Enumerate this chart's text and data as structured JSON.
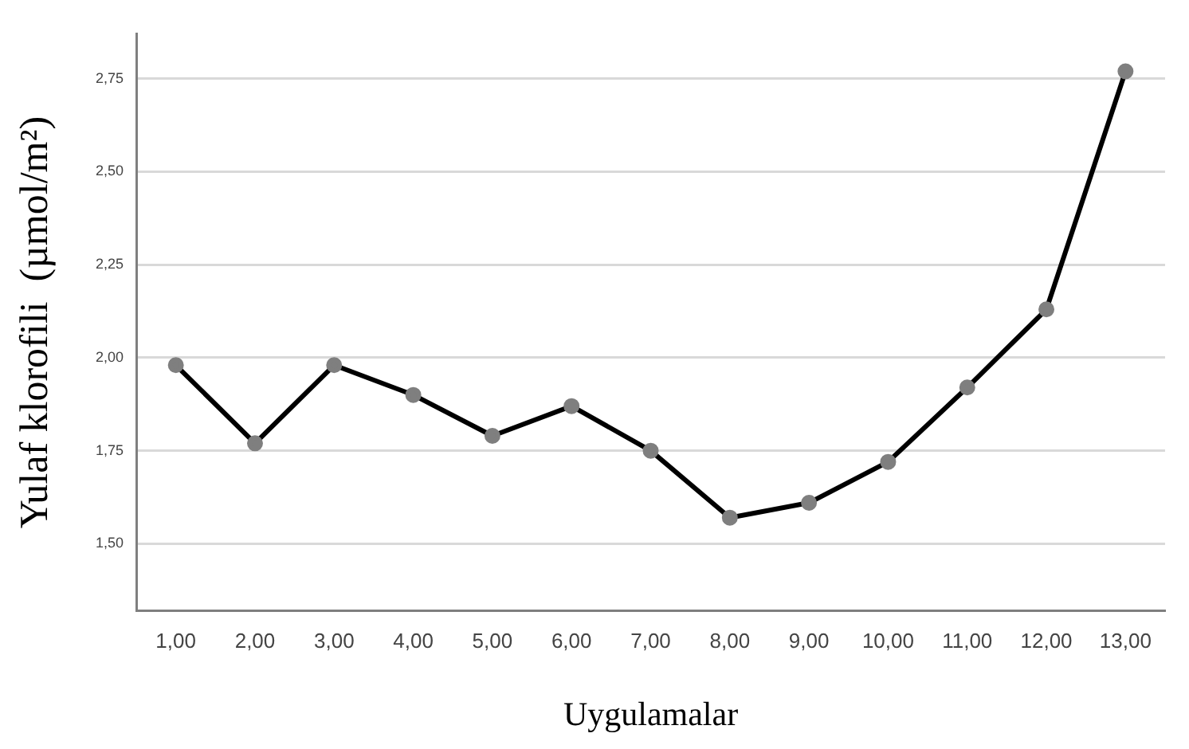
{
  "chart_data": {
    "type": "line",
    "xlabel": "Uygulamalar",
    "ylabel": "Yulaf klorofili  (µmol/m²)",
    "categories": [
      "1,00",
      "2,00",
      "3,00",
      "4,00",
      "5,00",
      "6,00",
      "7,00",
      "8,00",
      "9,00",
      "10,00",
      "11,00",
      "12,00",
      "13,00"
    ],
    "series": [
      {
        "color": "#000000",
        "values": [
          1.98,
          1.77,
          1.98,
          1.9,
          1.79,
          1.87,
          1.75,
          1.57,
          1.61,
          1.72,
          1.92,
          2.13,
          2.77
        ]
      }
    ],
    "ylim": [
      1.32,
      2.87
    ],
    "yticks": [
      {
        "value": 1.5,
        "label": "1,50"
      },
      {
        "value": 1.75,
        "label": "1,75"
      },
      {
        "value": 2.0,
        "label": "2,00"
      },
      {
        "value": 2.25,
        "label": "2,25"
      },
      {
        "value": 2.5,
        "label": "2,50"
      },
      {
        "value": 2.75,
        "label": "2,75"
      }
    ],
    "grid": "y",
    "legend": false,
    "marker": "circle",
    "line_style": "solid"
  }
}
